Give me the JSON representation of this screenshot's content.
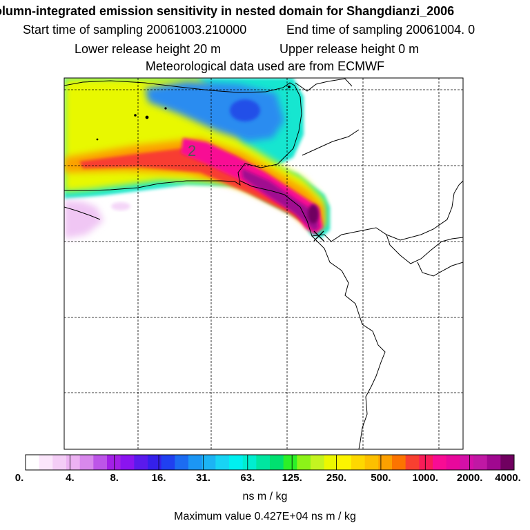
{
  "header": {
    "title": "olumn-integrated emission sensitivity in nested domain for Shangdianzi_2006",
    "start_sampling": "Start time of sampling 20061003.210000",
    "end_sampling": "End time of sampling 20061004.     0",
    "lower_release": "Lower release height   20 m",
    "upper_release": "Upper release height    0 m",
    "met_data": "Meteorological data used are from ECMWF"
  },
  "chart_data": {
    "type": "heatmap",
    "title": "olumn-integrated emission sensitivity in nested domain for Shangdianzi_2006",
    "colorbar": {
      "unit": "ns m / kg",
      "ticks": [
        "0.",
        "4.",
        "8.",
        "16.",
        "31.",
        "63.",
        "125.",
        "250.",
        "500.",
        "1000.",
        "2000.",
        "4000."
      ],
      "colors": [
        "#ffffff",
        "#fbe6fb",
        "#f4cdf6",
        "#ecb2f2",
        "#d888ec",
        "#bd55e8",
        "#a320e6",
        "#8a14f0",
        "#5a1aec",
        "#3520ea",
        "#2040f0",
        "#1c6cf2",
        "#1c96f4",
        "#1cb4f4",
        "#18d4f4",
        "#00f0f0",
        "#00eed0",
        "#00e6a0",
        "#00e070",
        "#2cf028",
        "#8cf218",
        "#c4f420",
        "#ecf800",
        "#fcf400",
        "#fdd800",
        "#fcc000",
        "#fca000",
        "#fc7400",
        "#f84030",
        "#f81c58",
        "#f80c94",
        "#e8089c",
        "#d410a8",
        "#c018a4",
        "#a00890",
        "#700060"
      ],
      "max_value_text": "Maximum value  0.427E+04 ns m / kg"
    },
    "grid": true,
    "plume_peak_value": 4270,
    "contour_label": "2"
  }
}
